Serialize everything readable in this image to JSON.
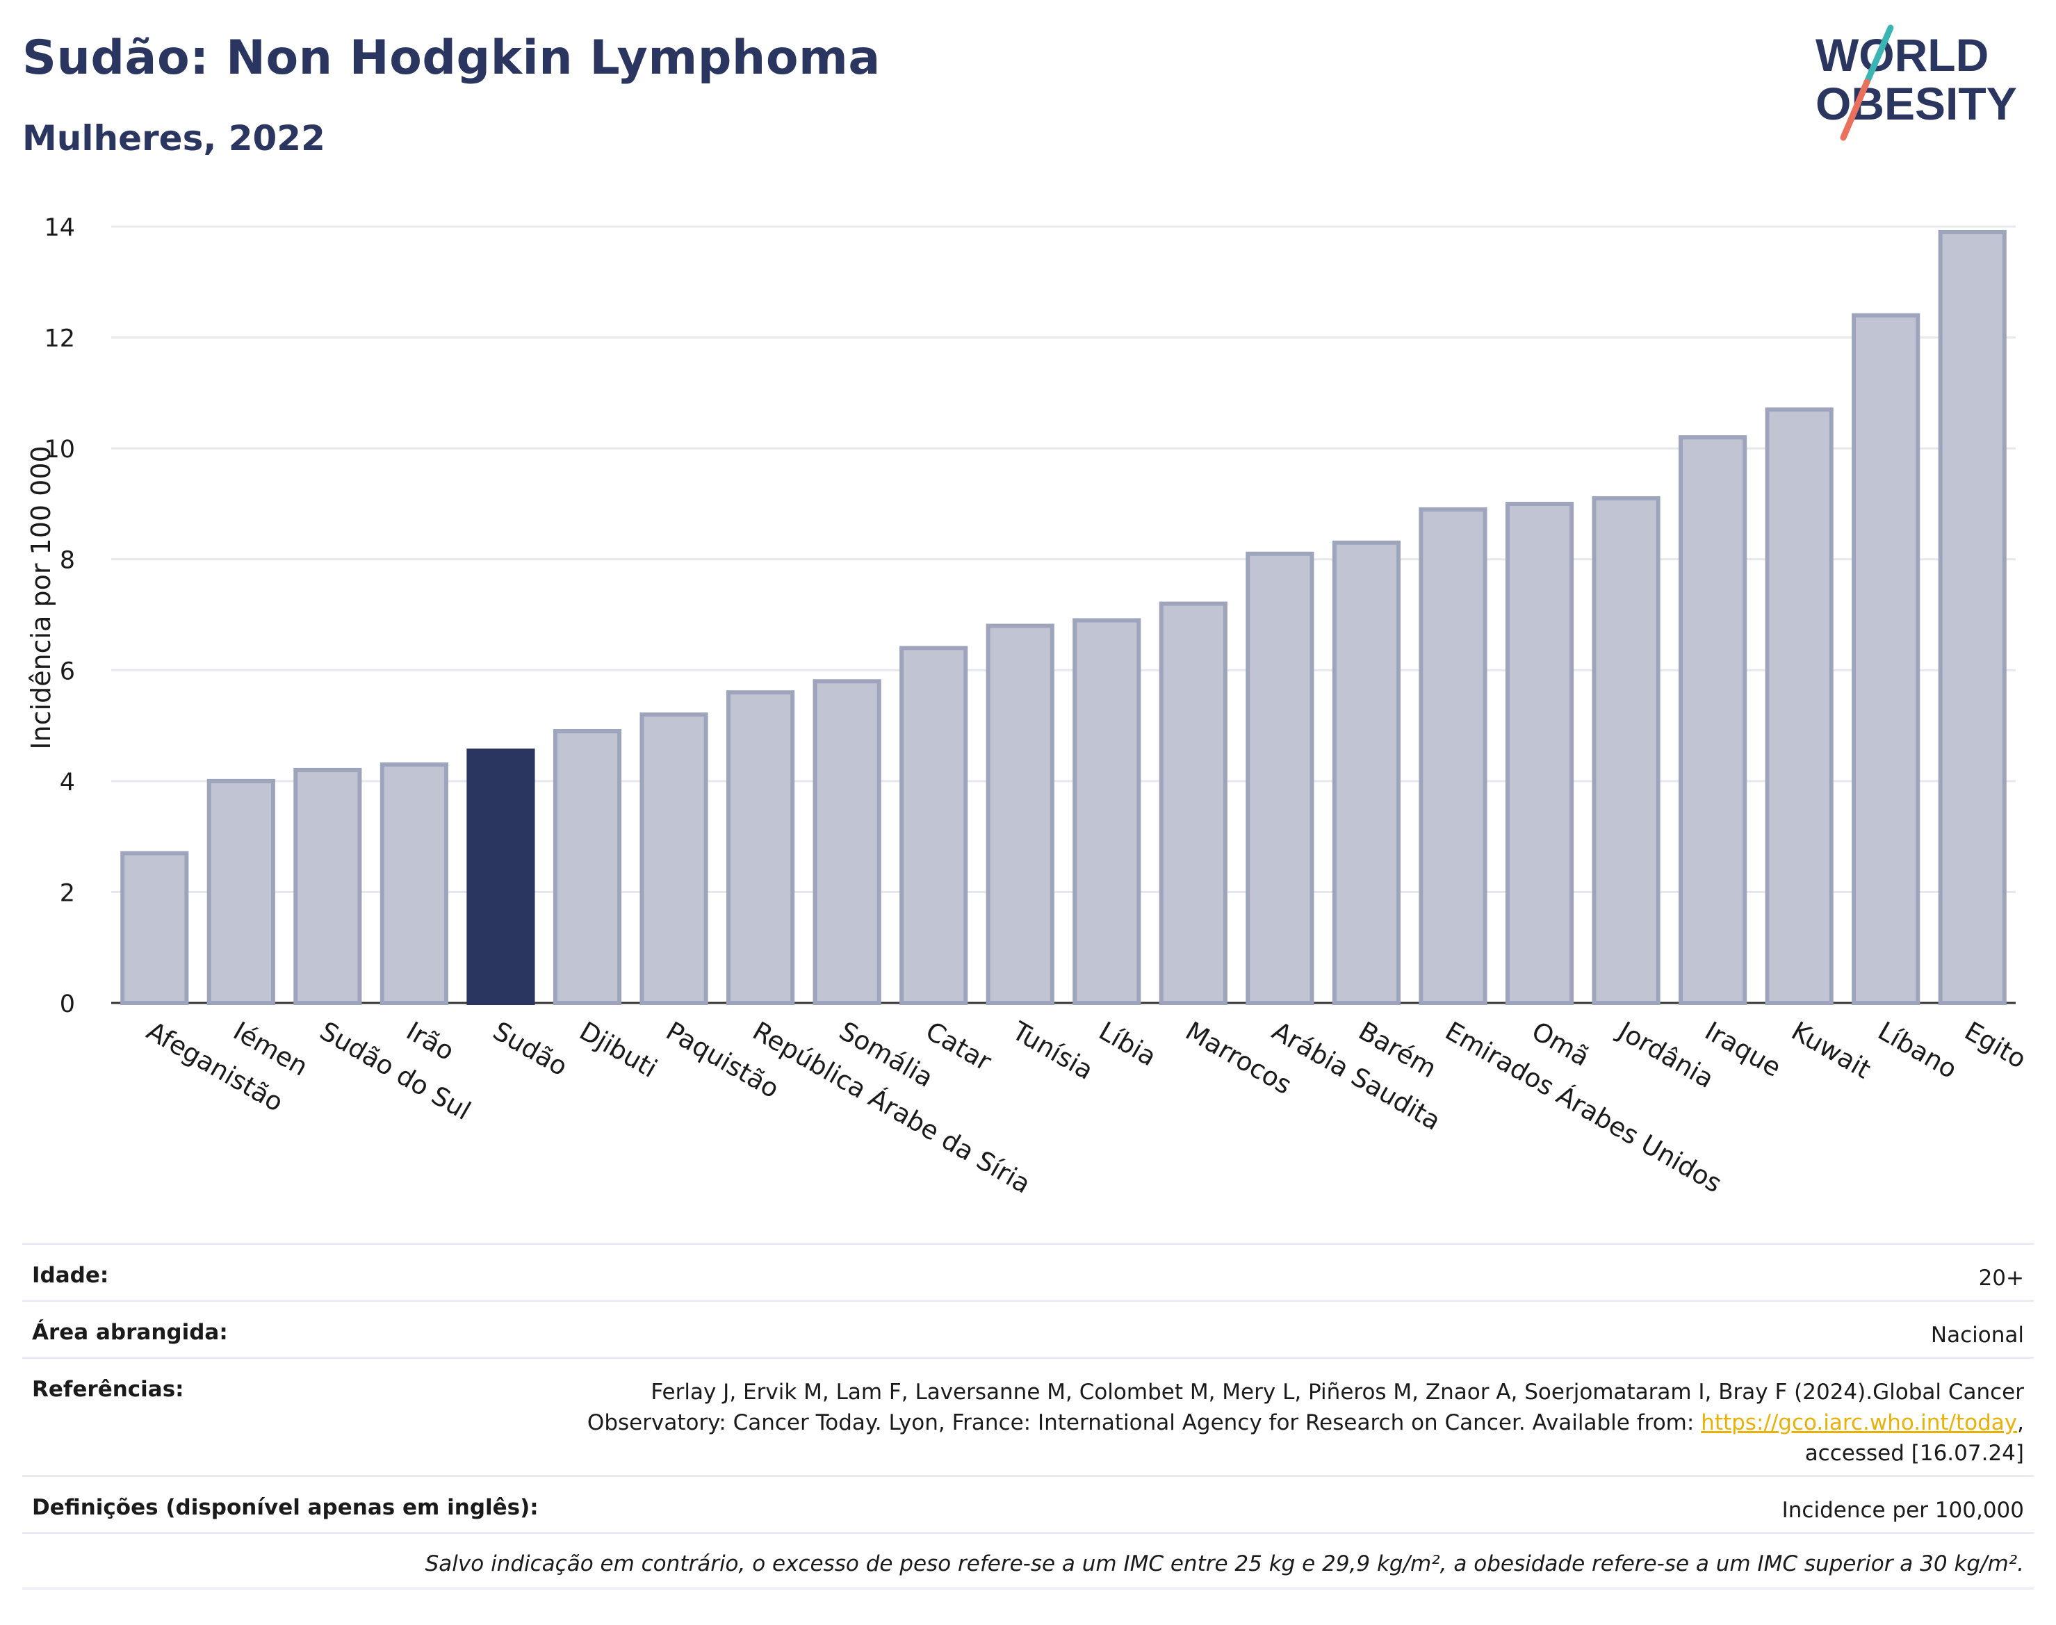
{
  "header": {
    "title": "Sudão: Non Hodgkin Lymphoma",
    "subtitle": "Mulheres, 2022"
  },
  "logo": {
    "line1": "WORLD",
    "line2": "OBESITY"
  },
  "colors": {
    "bar": "#c0c4d3",
    "bar_border": "#9ea4bc",
    "highlight": "#2b3660",
    "grid": "#e6e8ee",
    "text": "#1a1a1a",
    "link": "#e7b10a",
    "logo_teal": "#3cb4b4",
    "logo_coral": "#e8705c"
  },
  "chart_data": {
    "type": "bar",
    "ylabel": "Incidência por 100 000",
    "ylim": [
      0,
      14
    ],
    "yticks": [
      0,
      2,
      4,
      6,
      8,
      10,
      12,
      14
    ],
    "grid": true,
    "highlight": "Sudão",
    "categories": [
      "Afeganistão",
      "Iémen",
      "Sudão do Sul",
      "Irão",
      "Sudão",
      "Djibuti",
      "Paquistão",
      "República Árabe da Síria",
      "Somália",
      "Catar",
      "Tunísia",
      "Líbia",
      "Marrocos",
      "Arábia Saudita",
      "Barém",
      "Emirados Árabes Unidos",
      "Omã",
      "Jordânia",
      "Iraque",
      "Kuwait",
      "Líbano",
      "Egito"
    ],
    "values": [
      2.7,
      4.0,
      4.2,
      4.3,
      4.55,
      4.9,
      5.2,
      5.6,
      5.8,
      6.4,
      6.8,
      6.9,
      7.2,
      8.1,
      8.3,
      8.9,
      9.0,
      9.1,
      10.2,
      10.7,
      12.4,
      13.9
    ]
  },
  "info": {
    "age_label": "Idade:",
    "age_value": "20+",
    "area_label": "Área abrangida:",
    "area_value": "Nacional",
    "ref_label": "Referências:",
    "ref_text_1": "Ferlay J, Ervik M, Lam F, Laversanne M, Colombet M, Mery L, Piñeros M, Znaor A, Soerjomataram I, Bray F (2024).Global Cancer",
    "ref_text_2": "Observatory: Cancer Today. Lyon, France: International Agency for Research on Cancer. Available from:",
    "ref_link": "https://gco.iarc.who.int/today",
    "ref_text_3": ",",
    "ref_text_4": "accessed [16.07.24]",
    "def_label": "Definições (disponível apenas em inglês):",
    "def_value": "Incidence per 100,000",
    "note": "Salvo indicação em contrário, o excesso de peso refere-se a um IMC entre 25 kg e 29,9 kg/m², a obesidade refere-se a um IMC superior a 30 kg/m²."
  }
}
